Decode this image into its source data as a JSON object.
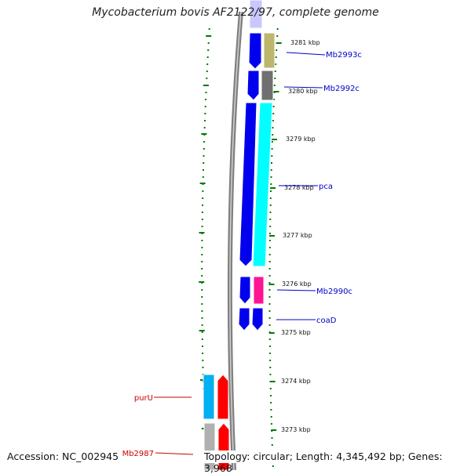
{
  "title": "Mycobacterium bovis AF2122/97, complete genome",
  "footer": {
    "accession": "Accession: NC_002945",
    "topology": "Topology: circular; Length: 4,345,492 bp; Genes: 3,968"
  },
  "ticks": [
    {
      "label": "3281 kbp"
    },
    {
      "label": "3280 kbp"
    },
    {
      "label": "3279 kbp"
    },
    {
      "label": "3278 kbp"
    },
    {
      "label": "3277 kbp"
    },
    {
      "label": "3276 kbp"
    },
    {
      "label": "3275 kbp"
    },
    {
      "label": "3274 kbp"
    },
    {
      "label": "3273 kbp"
    }
  ],
  "gene_labels": [
    {
      "name": "Mb2993c",
      "color": "#0000cc"
    },
    {
      "name": "Mb2992c",
      "color": "#0000cc"
    },
    {
      "name": "pca",
      "color": "#0000cc"
    },
    {
      "name": "Mb2990c",
      "color": "#0000cc"
    },
    {
      "name": "coaD",
      "color": "#0000cc"
    },
    {
      "name": "purU",
      "color": "#cc0000"
    },
    {
      "name": "Mb2987",
      "color": "#cc0000"
    }
  ],
  "colors": {
    "forward_cds": "#0000ee",
    "reverse_cds": "#ff0000",
    "backbone": "#808080",
    "tick": "#007a00",
    "cog_khaki": "#bdb76b",
    "cog_gray": "#707070",
    "cog_cyan": "#00ffff",
    "cog_magenta": "#ff1493",
    "cog_skyblue": "#00b0f0",
    "cog_lightgray": "#b0b0b0"
  }
}
